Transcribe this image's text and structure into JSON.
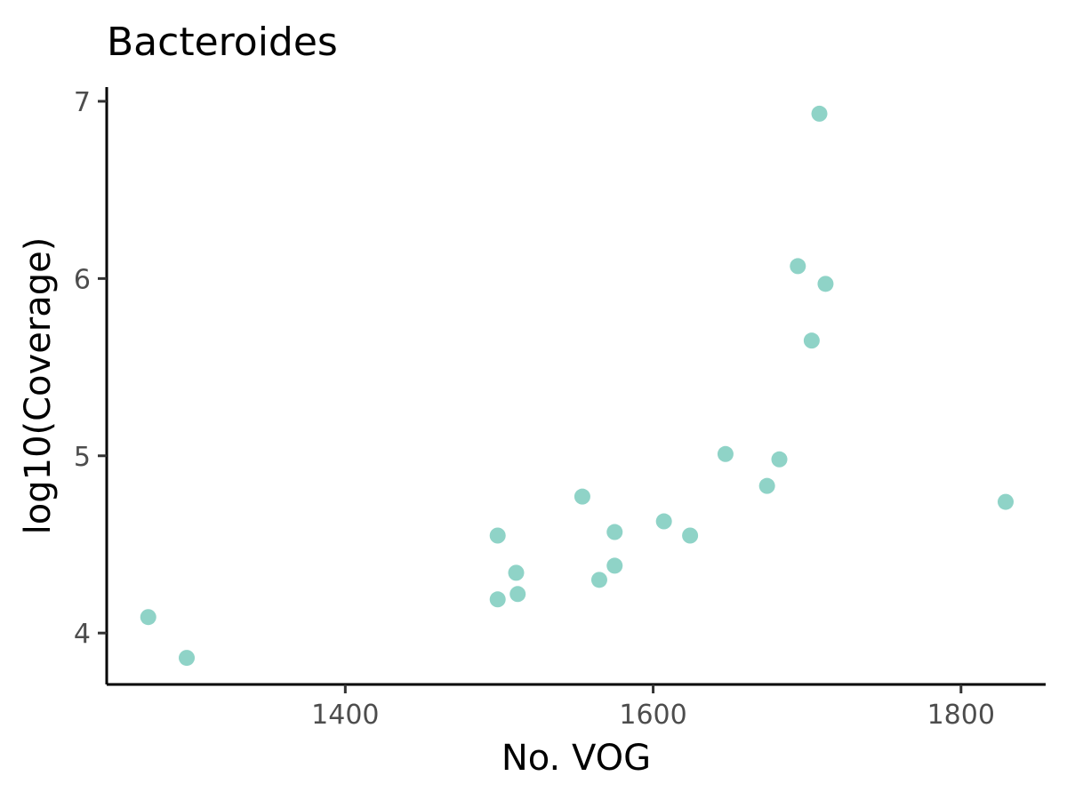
{
  "chart_data": {
    "type": "scatter",
    "title": "Bacteroides",
    "xlabel": "No. VOG",
    "ylabel": "log10(Coverage)",
    "xlim": [
      1245,
      1855
    ],
    "ylim": [
      3.71,
      7.08
    ],
    "xticks": [
      1400,
      1600,
      1800
    ],
    "yticks": [
      4,
      5,
      6,
      7
    ],
    "grid": false,
    "legend": "none",
    "point_color": "#8fd3c7",
    "points": [
      {
        "x": 1272,
        "y": 4.09
      },
      {
        "x": 1297,
        "y": 3.86
      },
      {
        "x": 1499,
        "y": 4.55
      },
      {
        "x": 1499,
        "y": 4.19
      },
      {
        "x": 1511,
        "y": 4.34
      },
      {
        "x": 1512,
        "y": 4.22
      },
      {
        "x": 1554,
        "y": 4.77
      },
      {
        "x": 1565,
        "y": 4.3
      },
      {
        "x": 1575,
        "y": 4.57
      },
      {
        "x": 1575,
        "y": 4.38
      },
      {
        "x": 1607,
        "y": 4.63
      },
      {
        "x": 1624,
        "y": 4.55
      },
      {
        "x": 1647,
        "y": 5.01
      },
      {
        "x": 1674,
        "y": 4.83
      },
      {
        "x": 1682,
        "y": 4.98
      },
      {
        "x": 1694,
        "y": 6.07
      },
      {
        "x": 1703,
        "y": 5.65
      },
      {
        "x": 1708,
        "y": 6.93
      },
      {
        "x": 1712,
        "y": 5.97
      },
      {
        "x": 1829,
        "y": 4.74
      }
    ]
  }
}
